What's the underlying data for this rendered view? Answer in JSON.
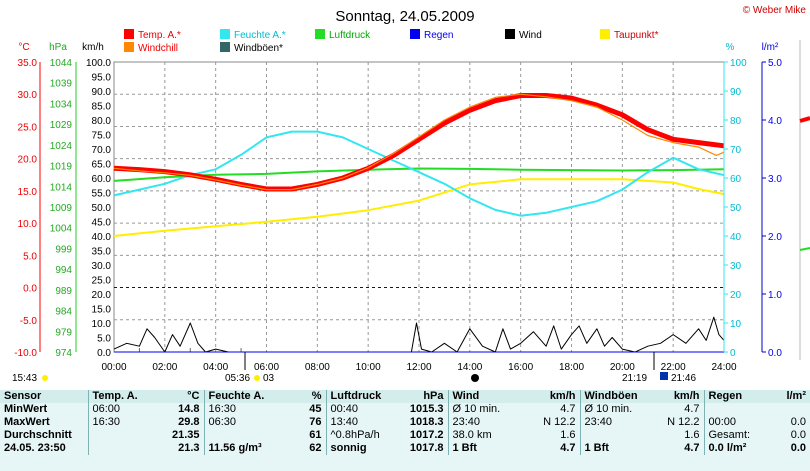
{
  "title": "Sonntag, 24.05.2009",
  "credit": "© Weber Mike",
  "colors": {
    "temp": "#ff0000",
    "humidity": "#33e6f0",
    "pressure": "#22dd22",
    "rain": "#0000ee",
    "wind": "#000000",
    "dewpoint": "#ffee00",
    "windchill": "#ff8800",
    "gust": "#336666"
  },
  "legend": [
    {
      "key": "temp",
      "label": "Temp. A.*"
    },
    {
      "key": "humidity",
      "label": "Feuchte A.*"
    },
    {
      "key": "pressure",
      "label": "Luftdruck"
    },
    {
      "key": "rain",
      "label": "Regen"
    },
    {
      "key": "wind",
      "label": "Wind"
    },
    {
      "key": "dewpoint",
      "label": "Taupunkt*"
    },
    {
      "key": "windchill",
      "label": "Windchill"
    },
    {
      "key": "gust",
      "label": "Windböen*"
    }
  ],
  "axis_units": {
    "temp": "°C",
    "pressure": "hPa",
    "wind": "km/h",
    "humidity": "%",
    "rain": "l/m²"
  },
  "chart_data": {
    "type": "line",
    "x_ticks": [
      "00:00",
      "02:00",
      "04:00",
      "06:00",
      "08:00",
      "10:00",
      "12:00",
      "14:00",
      "16:00",
      "18:00",
      "20:00",
      "22:00",
      "24:00"
    ],
    "temp_ticks": [
      "35.0",
      "30.0",
      "25.0",
      "20.0",
      "15.0",
      "10.0",
      "5.0",
      "0.0",
      "-5.0",
      "-10.0"
    ],
    "pressure_ticks": [
      "1044",
      "1039",
      "1034",
      "1029",
      "1024",
      "1019",
      "1014",
      "1009",
      "1004",
      "999",
      "994",
      "989",
      "984",
      "979",
      "974"
    ],
    "wind_ticks": [
      "100.0",
      "95.0",
      "90.0",
      "85.0",
      "80.0",
      "75.0",
      "70.0",
      "65.0",
      "60.0",
      "55.0",
      "50.0",
      "45.0",
      "40.0",
      "35.0",
      "30.0",
      "25.0",
      "20.0",
      "15.0",
      "10.0",
      "5.0",
      "0.0"
    ],
    "humidity_ticks": [
      "100",
      "90",
      "80",
      "70",
      "60",
      "50",
      "40",
      "30",
      "20",
      "10",
      "0"
    ],
    "rain_ticks": [
      "5.0",
      "4.0",
      "3.0",
      "2.0",
      "1.0",
      "0.0"
    ],
    "ylim_temp": [
      -10,
      35
    ],
    "ylim_wind": [
      0,
      100
    ],
    "series": [
      {
        "name": "Temp. A.*",
        "key": "temp",
        "axis": "temp",
        "x": [
          0,
          1,
          2,
          3,
          4,
          5,
          6,
          7,
          8,
          9,
          10,
          11,
          12,
          13,
          14,
          15,
          16,
          17,
          18,
          19,
          20,
          21,
          22,
          23,
          24
        ],
        "values": [
          18.5,
          18.3,
          18.0,
          17.5,
          16.8,
          16.0,
          15.3,
          15.3,
          16.0,
          17.0,
          18.5,
          20.5,
          23.0,
          25.5,
          27.5,
          29.0,
          29.8,
          29.8,
          29.4,
          28.3,
          26.8,
          24.5,
          23.0,
          22.5,
          22.0
        ]
      },
      {
        "name": "Windchill",
        "key": "windchill",
        "axis": "temp",
        "x": [
          0,
          1,
          2,
          3,
          4,
          5,
          6,
          7,
          8,
          9,
          10,
          11,
          12,
          13,
          14,
          15,
          16,
          17,
          18,
          19,
          20,
          21,
          22,
          23,
          23.7,
          24
        ],
        "values": [
          18.5,
          18.1,
          17.8,
          17.4,
          16.7,
          15.9,
          15.2,
          15.2,
          16.0,
          17.0,
          18.6,
          20.8,
          23.4,
          26.0,
          28.0,
          29.5,
          30.0,
          29.6,
          29.0,
          28.0,
          26.0,
          23.6,
          22.5,
          21.8,
          20.5,
          21.0
        ]
      },
      {
        "name": "Feuchte A.*",
        "key": "humidity",
        "axis": "humidity",
        "x": [
          0,
          1,
          2,
          3,
          4,
          5,
          6,
          7,
          8,
          9,
          10,
          11,
          12,
          13,
          14,
          15,
          16,
          17,
          18,
          19,
          20,
          21,
          22,
          23,
          24
        ],
        "values": [
          54,
          56,
          58,
          61,
          63,
          68,
          74,
          76,
          76,
          74,
          70,
          66,
          62,
          58,
          53,
          49,
          47,
          48,
          50,
          52,
          56,
          62,
          67,
          63,
          61
        ]
      },
      {
        "name": "Luftdruck",
        "key": "pressure",
        "axis": "pressure",
        "x": [
          0,
          2,
          4,
          6,
          8,
          10,
          12,
          14,
          16,
          18,
          20,
          22,
          24
        ],
        "values": [
          1015.3,
          1016.2,
          1016.8,
          1017.0,
          1017.6,
          1018.0,
          1018.3,
          1018.2,
          1018.0,
          1017.9,
          1017.8,
          1017.9,
          1018.1
        ]
      },
      {
        "name": "Taupunkt*",
        "key": "dewpoint",
        "axis": "temp",
        "x": [
          0,
          2,
          4,
          6,
          8,
          10,
          12,
          14,
          16,
          18,
          20,
          22,
          23,
          24
        ],
        "values": [
          8.0,
          8.8,
          9.5,
          10.2,
          11.0,
          12.0,
          13.5,
          16.0,
          16.8,
          16.8,
          16.8,
          16.3,
          15.3,
          14.5
        ]
      },
      {
        "name": "Wind",
        "key": "wind",
        "axis": "wind",
        "x": [
          0,
          0.5,
          1,
          1.3,
          1.6,
          2,
          2.3,
          2.6,
          3,
          3.3,
          3.6,
          4,
          4.5,
          5,
          6,
          8,
          10,
          11.7,
          11.9,
          12.1,
          12.5,
          13,
          13.5,
          14,
          14.5,
          15,
          15.3,
          15.6,
          16,
          16.5,
          17,
          17.3,
          17.6,
          18,
          18.3,
          18.6,
          19,
          19.3,
          19.6,
          20,
          20.5,
          21,
          21.5,
          22,
          22.5,
          23,
          23.3,
          23.6,
          23.8,
          24
        ],
        "values": [
          1,
          3,
          2,
          8,
          5,
          0,
          6,
          2,
          10,
          3,
          0,
          1,
          0,
          0,
          0,
          0,
          0,
          0,
          10,
          1,
          0,
          3,
          0,
          8,
          2,
          0,
          8,
          1,
          3,
          7,
          2,
          9,
          1,
          6,
          9,
          3,
          8,
          2,
          5,
          1,
          0,
          2,
          3,
          6,
          3,
          8,
          4,
          12,
          6,
          4
        ]
      },
      {
        "name": "Windböen*",
        "key": "gust",
        "axis": "wind",
        "x": [
          0,
          4,
          8,
          12,
          16,
          20,
          24
        ],
        "values": [
          0,
          0,
          0,
          0,
          0,
          0,
          0
        ]
      },
      {
        "name": "Regen",
        "key": "rain",
        "axis": "rain",
        "x": [
          0,
          24
        ],
        "values": [
          0,
          0
        ]
      }
    ]
  },
  "sun_row": {
    "left": "15:43",
    "sunrise": "05:36",
    "moon_left": "03",
    "sunset": "21:19",
    "moon_right": "21:46"
  },
  "summary": {
    "headers": {
      "sensor": "Sensor",
      "temp": "Temp. A.",
      "temp_unit": "°C",
      "hum": "Feuchte A.",
      "hum_unit": "%",
      "press": "Luftdruck",
      "press_unit": "hPa",
      "wind": "Wind",
      "wind_unit": "km/h",
      "gust": "Windböen",
      "gust_unit": "km/h",
      "rain": "Regen",
      "rain_unit": "l/m²"
    },
    "rows": [
      {
        "label": "MinWert",
        "temp_time": "06:00",
        "temp_val": "14.8",
        "hum_time": "16:30",
        "hum_val": "45",
        "press_time": "00:40",
        "press_val": "1015.3",
        "wind_a": "Ø 10 min.",
        "wind_b": "4.7",
        "gust_a": "Ø 10 min.",
        "gust_b": "4.7",
        "rain_a": "",
        "rain_b": ""
      },
      {
        "label": "MaxWert",
        "temp_time": "16:30",
        "temp_val": "29.8",
        "hum_time": "06:30",
        "hum_val": "76",
        "press_time": "13:40",
        "press_val": "1018.3",
        "wind_a": "23:40",
        "wind_b": "N 12.2",
        "gust_a": "23:40",
        "gust_b": "N 12.2",
        "rain_a": "00:00",
        "rain_b": "0.0"
      },
      {
        "label": "Durchschnitt",
        "temp_time": "",
        "temp_val": "21.35",
        "hum_time": "",
        "hum_val": "61",
        "press_time": "^0.8hPa/h",
        "press_val": "1017.2",
        "wind_a": "38.0 km",
        "wind_b": "1.6",
        "gust_a": "",
        "gust_b": "1.6",
        "rain_a": "Gesamt:",
        "rain_b": "0.0"
      },
      {
        "label": "24.05. 23:50",
        "temp_time": "",
        "temp_val": "21.3",
        "hum_time": "11.56 g/m³",
        "hum_val": "62",
        "press_time": "sonnig",
        "press_val": "1017.8",
        "wind_a": "1 Bft",
        "wind_b": "4.7",
        "gust_a": "1 Bft",
        "gust_b": "4.7",
        "rain_a": "0.0 l/m²",
        "rain_b": "0.0"
      }
    ]
  }
}
